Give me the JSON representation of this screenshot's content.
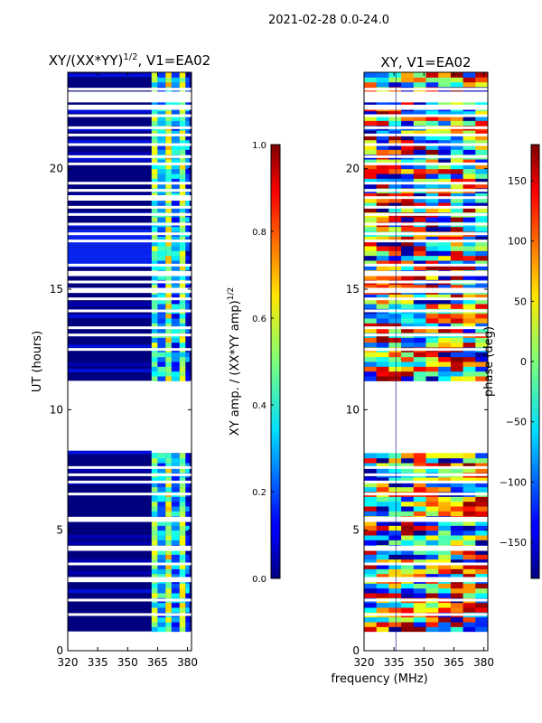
{
  "suptitle": "2021-02-28 0.0-24.0",
  "shared_xlabel": "frequency (MHz)",
  "chart_data": [
    {
      "type": "heatmap",
      "title_main": "XY/(XX*YY)",
      "title_sup": "1/2",
      "title_tail": ", V1=EA02",
      "ylabel": "UT (hours)",
      "xlim": [
        320,
        382
      ],
      "ylim": [
        0,
        24
      ],
      "xticks": [
        320,
        335,
        350,
        365,
        380
      ],
      "yticks": [
        0,
        5,
        10,
        15,
        20
      ],
      "data_bands_ut": [
        [
          0.8,
          8.2
        ],
        [
          11.2,
          24.0
        ]
      ],
      "blank_rows_ut": [
        1.5,
        2.1,
        2.9,
        3.0,
        3.6,
        4.2,
        4.3,
        5.4,
        5.5,
        6.5,
        7.0,
        7.3,
        7.6,
        12.5,
        13.1,
        13.4,
        14.1,
        14.6,
        14.9,
        15.0,
        15.3,
        15.6,
        15.7,
        16.0,
        17.0,
        17.3,
        17.7,
        18.1,
        18.4,
        18.8,
        19.1,
        19.4,
        20.2,
        20.5,
        21.0,
        21.4,
        21.7,
        22.2,
        22.5,
        22.6,
        22.9,
        23.0,
        23.3
      ],
      "colorbar": {
        "label_main": "XY amp. / (XX*YY amp)",
        "label_sup": "1/2",
        "range": [
          0.0,
          1.0
        ],
        "ticks": [
          "0.0",
          "0.2",
          "0.4",
          "0.6",
          "0.8",
          "1.0"
        ]
      }
    },
    {
      "type": "heatmap",
      "title": "XY, V1=EA02",
      "xlim": [
        320,
        382
      ],
      "ylim": [
        0,
        24
      ],
      "xticks": [
        320,
        335,
        350,
        365,
        380
      ],
      "yticks": [
        0,
        5,
        10,
        15,
        20
      ],
      "data_bands_ut": [
        [
          0.8,
          8.2
        ],
        [
          11.2,
          24.0
        ]
      ],
      "colorbar": {
        "label": "phase (deg)",
        "range": [
          -180,
          180
        ],
        "ticks": [
          "150",
          "100",
          "50",
          "0",
          "−50",
          "−100",
          "−150"
        ]
      }
    }
  ]
}
